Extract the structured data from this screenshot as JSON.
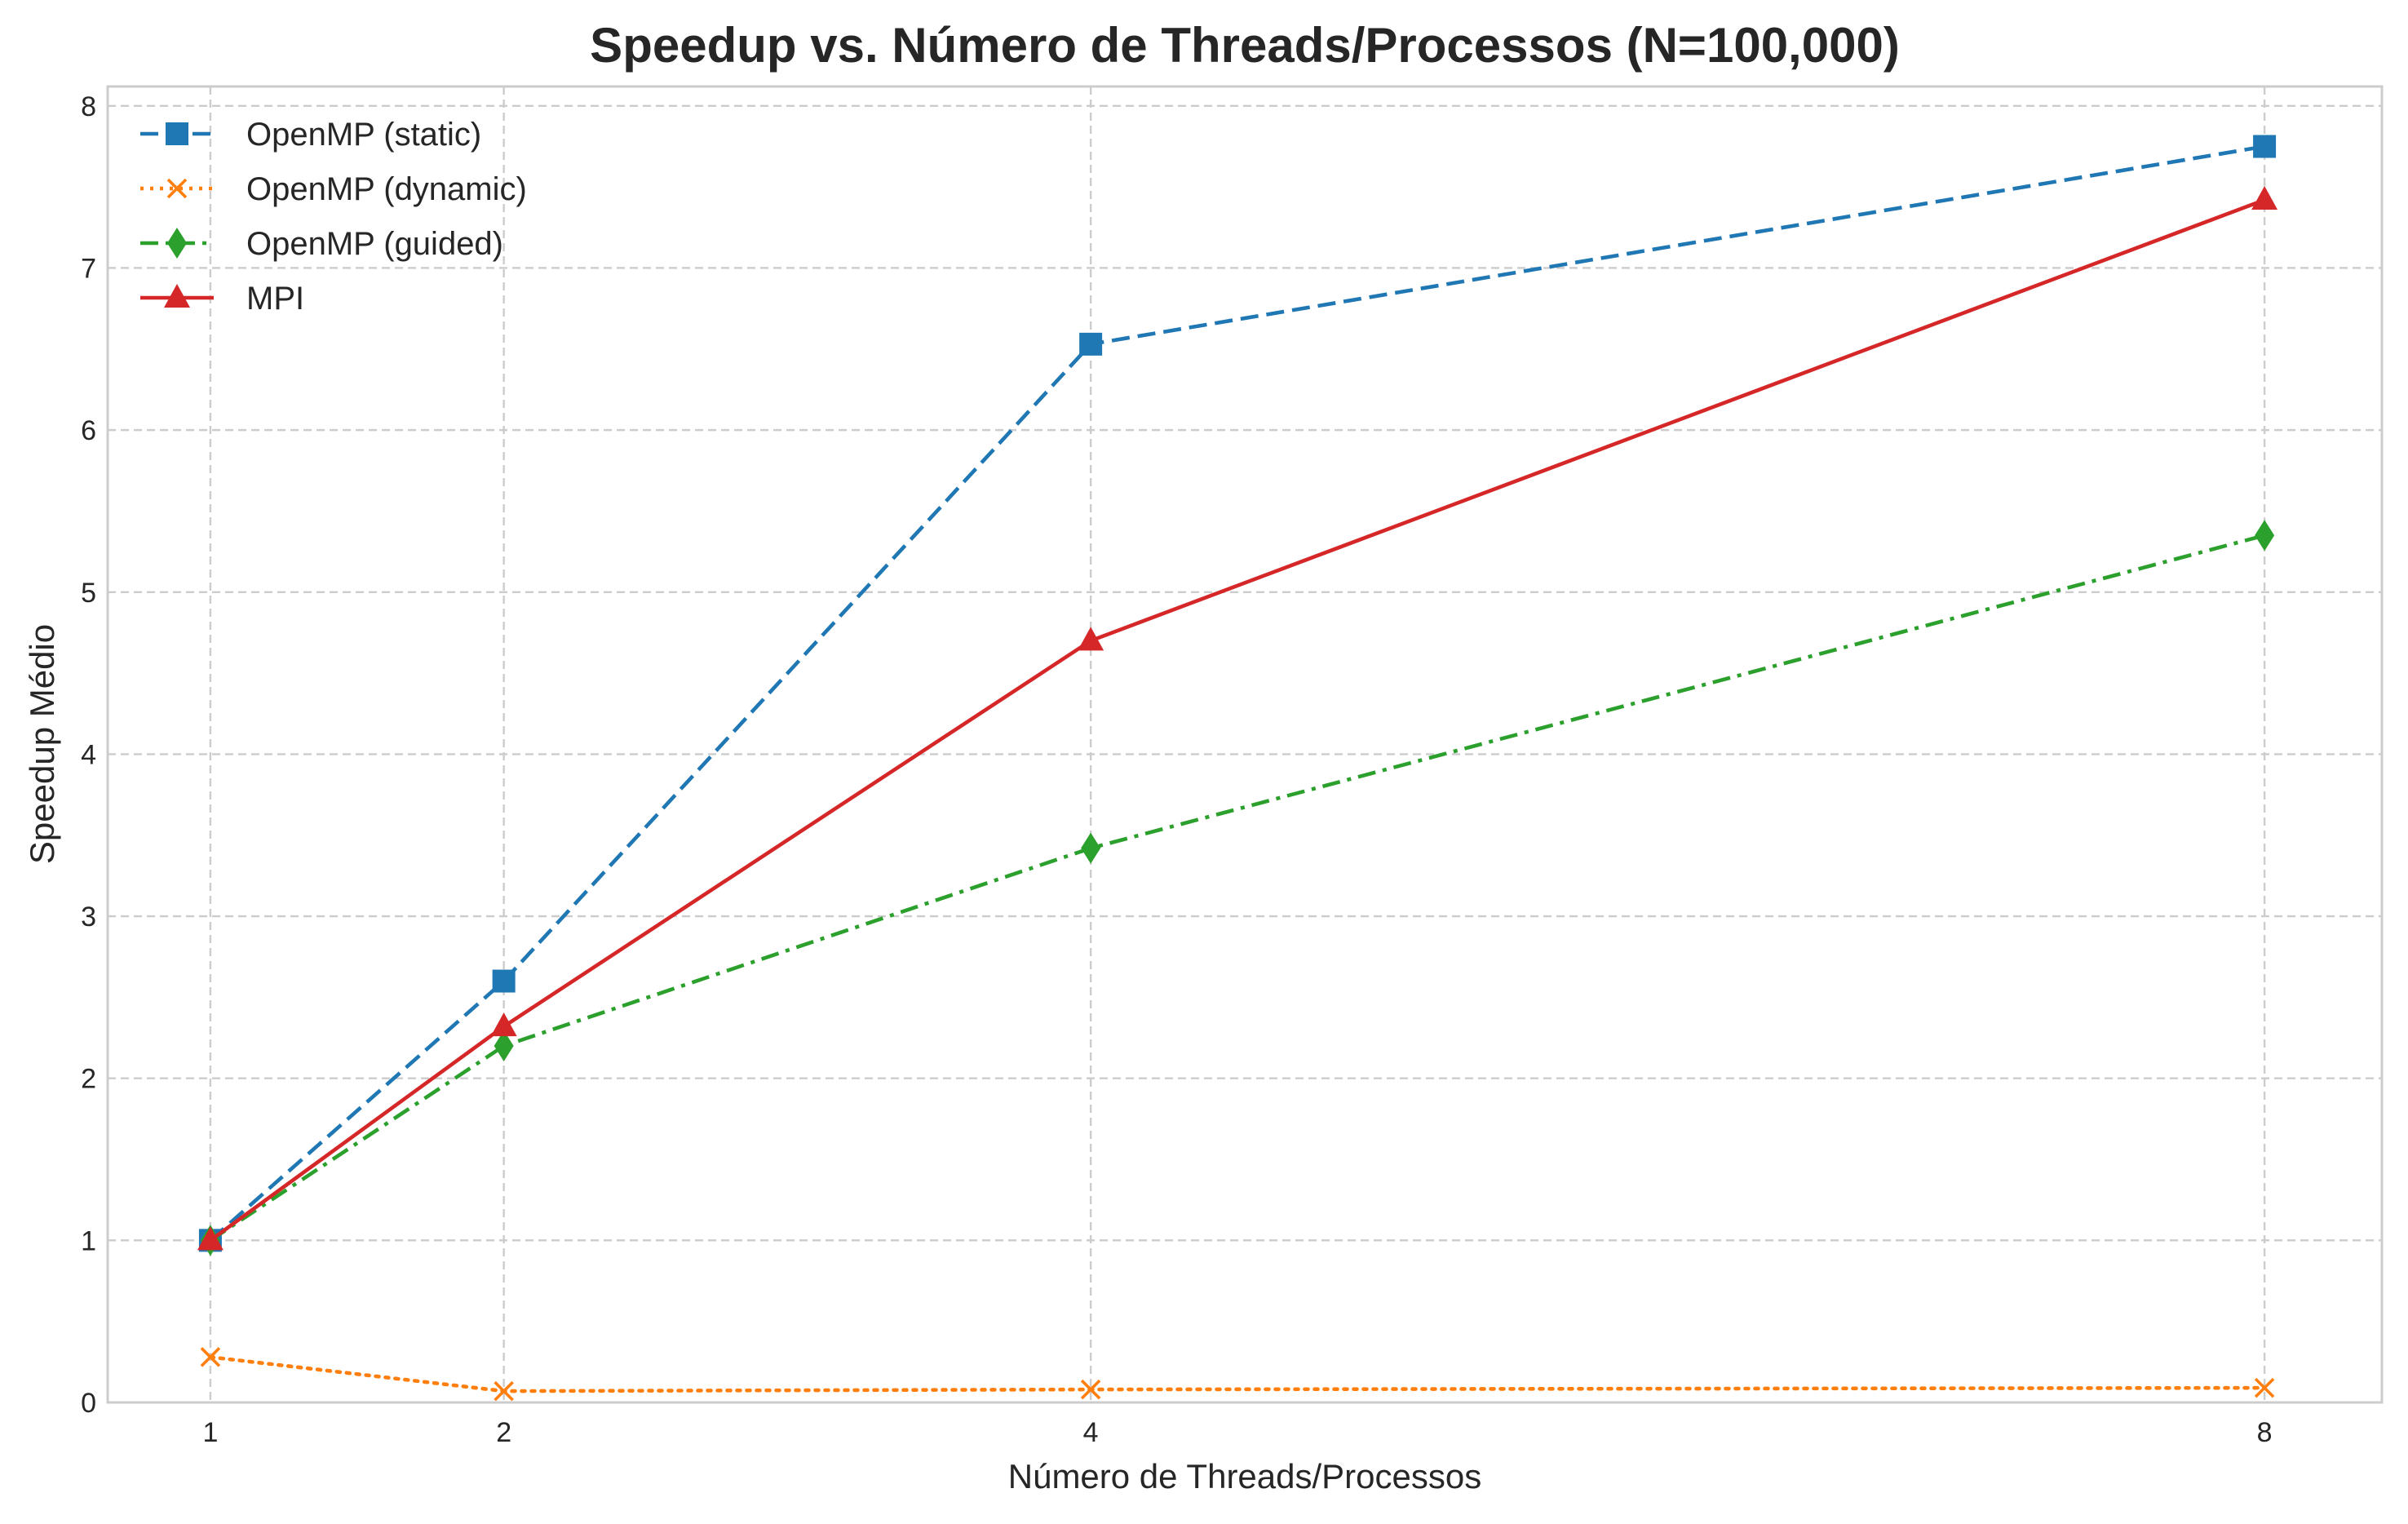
{
  "chart_data": {
    "type": "line",
    "title": "Speedup vs. Número de Threads/Processos (N=100,000)",
    "xlabel": "Número de Threads/Processos",
    "ylabel": "Speedup Médio",
    "x": [
      1,
      2,
      4,
      8
    ],
    "x_tick_labels": [
      "1",
      "2",
      "4",
      "8"
    ],
    "y_ticks": [
      0,
      1,
      2,
      3,
      4,
      5,
      6,
      7,
      8
    ],
    "y_tick_labels": [
      "0",
      "1",
      "2",
      "3",
      "4",
      "5",
      "6",
      "7",
      "8"
    ],
    "xlim": [
      0.65,
      8.4
    ],
    "ylim": [
      0,
      8.12
    ],
    "grid": true,
    "legend_position": "top-left",
    "series": [
      {
        "name": "OpenMP (static)",
        "values": [
          1.0,
          2.6,
          6.53,
          7.75
        ],
        "color": "#1f77b4",
        "line_style": "dashed",
        "marker": "square"
      },
      {
        "name": "OpenMP (dynamic)",
        "values": [
          0.28,
          0.07,
          0.08,
          0.09
        ],
        "color": "#ff7f0e",
        "line_style": "dotted",
        "marker": "x"
      },
      {
        "name": "OpenMP (guided)",
        "values": [
          1.0,
          2.2,
          3.42,
          5.35
        ],
        "color": "#2ca02c",
        "line_style": "dashdot",
        "marker": "thin-diamond"
      },
      {
        "name": "MPI",
        "values": [
          1.0,
          2.32,
          4.7,
          7.42
        ],
        "color": "#d62728",
        "line_style": "solid",
        "marker": "triangle-up"
      }
    ]
  }
}
